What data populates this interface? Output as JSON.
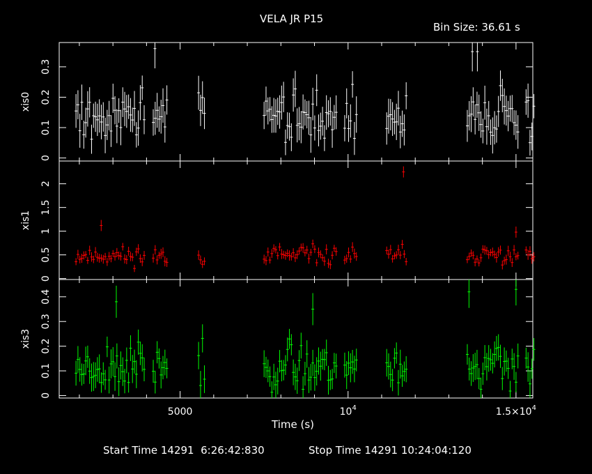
{
  "chart_data": {
    "type": "line",
    "title": "VELA JR P15",
    "bin_label": "Bin Size: 36.61 s",
    "xlabel": "Time (s)",
    "xlim": [
      1400,
      15500
    ],
    "x_ticks": [
      {
        "value": 5000,
        "label": "5000"
      },
      {
        "value": 10000,
        "base": "10",
        "exp": "4"
      },
      {
        "value": 15000,
        "base": "1.5×10",
        "exp": "4"
      }
    ],
    "footer": {
      "start": "Start Time 14291  6:26:42:830",
      "stop": "Stop Time 14291 10:24:04:120"
    },
    "segments": [
      [
        1900,
        3950
      ],
      [
        4200,
        4650
      ],
      [
        5550,
        5750
      ],
      [
        7500,
        9650
      ],
      [
        9900,
        10300
      ],
      [
        11150,
        11750
      ],
      [
        13550,
        15100
      ],
      [
        15300,
        15550
      ]
    ],
    "series": [
      {
        "name": "xis0",
        "color": "#ffffff",
        "ylim": [
          -0.01,
          0.38
        ],
        "ticks": [
          0,
          0.1,
          0.2,
          0.3
        ],
        "mean": 0.14,
        "spread": 0.07,
        "err": 0.05,
        "seed": 3,
        "outliers": [
          [
            4250,
            0.36
          ],
          [
            13700,
            0.35
          ],
          [
            13850,
            0.35
          ]
        ]
      },
      {
        "name": "xis1",
        "color": "#ff0000",
        "ylim": [
          -0.02,
          2.48
        ],
        "ticks": [
          0,
          0.5,
          1,
          1.5,
          2
        ],
        "mean": 0.48,
        "spread": 0.15,
        "err": 0.09,
        "seed": 11,
        "outliers": [
          [
            2650,
            1.12
          ],
          [
            11650,
            2.25
          ],
          [
            15000,
            0.98
          ]
        ]
      },
      {
        "name": "xis3",
        "color": "#00ff00",
        "ylim": [
          -0.01,
          0.47
        ],
        "ticks": [
          0,
          0.1,
          0.2,
          0.3,
          0.4
        ],
        "mean": 0.12,
        "spread": 0.07,
        "err": 0.05,
        "seed": 23,
        "outliers": [
          [
            3100,
            0.38
          ],
          [
            8950,
            0.35
          ],
          [
            13600,
            0.42
          ],
          [
            15000,
            0.43
          ]
        ]
      }
    ]
  }
}
